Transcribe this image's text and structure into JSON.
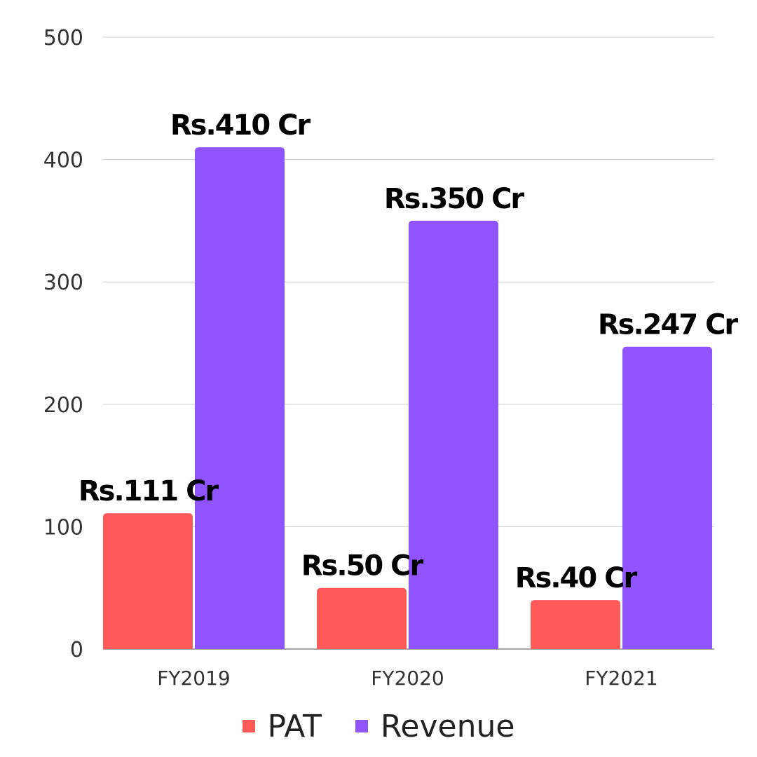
{
  "chart_data": {
    "type": "bar",
    "categories": [
      "FY2019",
      "FY2020",
      "FY2021"
    ],
    "series": [
      {
        "name": "PAT",
        "color": "#ff5a5a",
        "values": [
          111,
          50,
          40
        ],
        "labels": [
          "Rs.111 Cr",
          "Rs.50 Cr",
          "Rs.40 Cr"
        ]
      },
      {
        "name": "Revenue",
        "color": "#8f53ff",
        "values": [
          410,
          350,
          247
        ],
        "labels": [
          "Rs.410 Cr",
          "Rs.350 Cr",
          "Rs.247 Cr"
        ]
      }
    ],
    "yticks": [
      "0",
      "100",
      "200",
      "300",
      "400",
      "500"
    ],
    "ylim": [
      0,
      500
    ],
    "grid": true,
    "legend_position": "bottom"
  }
}
